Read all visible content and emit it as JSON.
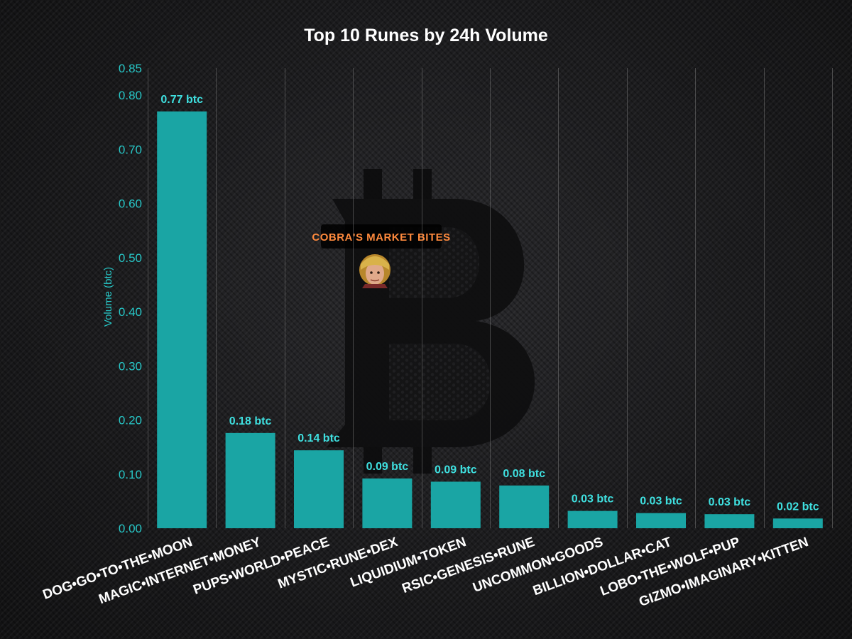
{
  "chart_data": {
    "type": "bar",
    "title": "Top 10 Runes by 24h Volume",
    "xlabel": "",
    "ylabel": "Volume (btc)",
    "ylim": [
      0,
      0.85
    ],
    "yticks": [
      "0.00",
      "0.10",
      "0.20",
      "0.30",
      "0.40",
      "0.50",
      "0.60",
      "0.70",
      "0.80",
      "0.85"
    ],
    "grid": "vertical",
    "categories": [
      "DOG•GO•TO•THE•MOON",
      "MAGIC•INTERNET•MONEY",
      "PUPS•WORLD•PEACE",
      "MYSTIC•RUNE•DEX",
      "LIQUIDIUM•TOKEN",
      "RSIC•GENESIS•RUNE",
      "UNCOMMON•GOODS",
      "BILLION•DOLLAR•CAT",
      "LOBO•THE•WOLF•PUP",
      "GIZMO•IMAGINARY•KITTEN"
    ],
    "values": [
      0.77,
      0.176,
      0.144,
      0.092,
      0.086,
      0.079,
      0.032,
      0.028,
      0.026,
      0.018
    ],
    "data_labels": [
      "0.77 btc",
      "0.18 btc",
      "0.14 btc",
      "0.09 btc",
      "0.09 btc",
      "0.08 btc",
      "0.03 btc",
      "0.03 btc",
      "0.03 btc",
      "0.02 btc"
    ],
    "bar_color": "#1aa5a4",
    "label_color": "#3fe0e0",
    "axis_color": "#27c7c7"
  },
  "watermark": {
    "text": "COBRA'S MARKET BITES",
    "icon": "bitcoin-logo",
    "avatar": "avatar-icon",
    "accent": "#ff8a3d"
  }
}
